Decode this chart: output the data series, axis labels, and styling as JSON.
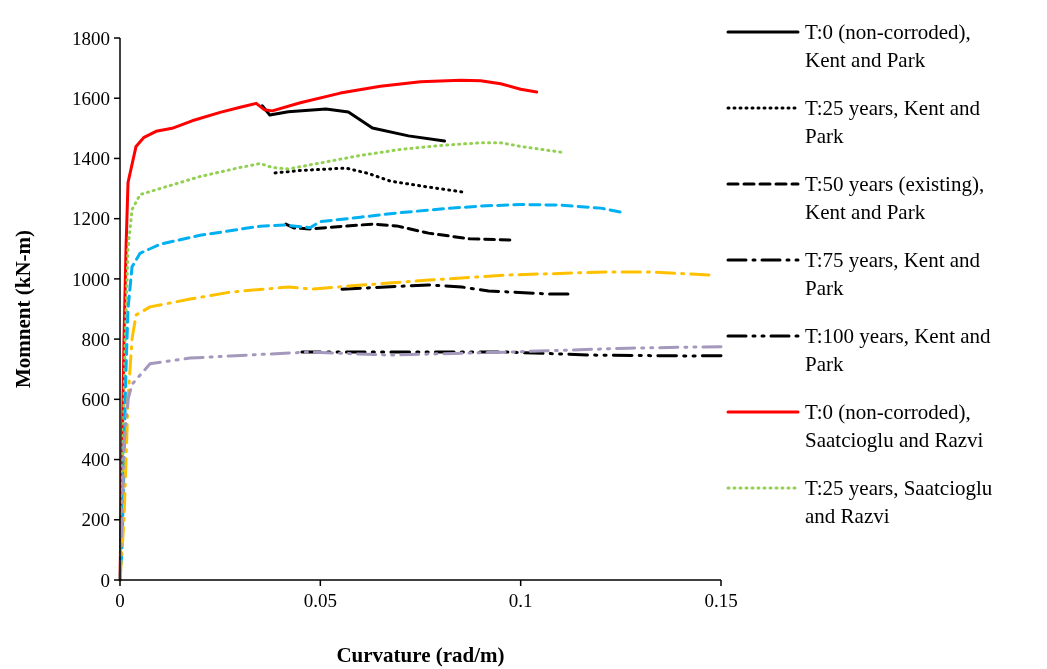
{
  "chart_data": {
    "type": "line",
    "xlabel": "Curvature (rad/m)",
    "ylabel": "Momnent (kN-m)",
    "xlim": [
      0,
      0.15
    ],
    "xticks": [
      0,
      0.05,
      0.1,
      0.15
    ],
    "ylim": [
      0,
      1800
    ],
    "yticks": [
      0,
      200,
      400,
      600,
      800,
      1000,
      1200,
      1400,
      1600,
      1800
    ],
    "grid": false,
    "legend": "right",
    "series": [
      {
        "name": "T:0 (non-corroded), Kent and Park",
        "color": "#000000",
        "line_style": "solid",
        "x": [
          0.0355,
          0.0374,
          0.042,
          0.0514,
          0.057,
          0.063,
          0.072,
          0.081
        ],
        "values": [
          1575,
          1544,
          1555,
          1564,
          1554,
          1501,
          1475,
          1458
        ]
      },
      {
        "name": "T:25 years, Kent and Park",
        "color": "#000000",
        "line_style": "dotted",
        "x": [
          0.0387,
          0.045,
          0.0564,
          0.062,
          0.0674,
          0.0754,
          0.0853
        ],
        "values": [
          1352,
          1360,
          1368,
          1350,
          1325,
          1308,
          1289
        ]
      },
      {
        "name": "T:50 years (existing), Kent and Park",
        "color": "#000000",
        "line_style": "dashed",
        "x": [
          0.0414,
          0.0434,
          0.0474,
          0.063,
          0.069,
          0.077,
          0.0873,
          0.0973
        ],
        "values": [
          1182,
          1169,
          1166,
          1182,
          1176,
          1152,
          1133,
          1129
        ]
      },
      {
        "name": "T:75 years, Kent and Park",
        "color": "#000000",
        "line_style": "dashdot",
        "x": [
          0.0554,
          0.077,
          0.0853,
          0.092,
          0.107,
          0.1118
        ],
        "values": [
          966,
          980,
          973,
          960,
          950,
          950
        ]
      },
      {
        "name": "T:100 years, Kent and Park",
        "color": "#000000",
        "line_style": "dashdotdot",
        "x": [
          0.0454,
          0.097,
          0.117,
          0.142,
          0.15
        ],
        "values": [
          757,
          757,
          747,
          744,
          745
        ]
      },
      {
        "name": "T:0 (non-corroded), Saatcioglu and Razvi",
        "color": "#ff0000",
        "line_style": "solid",
        "x": [
          0,
          0.0005,
          0.001,
          0.0015,
          0.002,
          0.004,
          0.006,
          0.009,
          0.013,
          0.018,
          0.025,
          0.03,
          0.034,
          0.036,
          0.038,
          0.045,
          0.055,
          0.065,
          0.075,
          0.085,
          0.09,
          0.095,
          0.1,
          0.104
        ],
        "values": [
          0,
          400,
          800,
          1100,
          1320,
          1440,
          1470,
          1490,
          1500,
          1525,
          1553,
          1570,
          1583,
          1562,
          1558,
          1585,
          1617,
          1640,
          1655,
          1660,
          1658,
          1648,
          1630,
          1621
        ]
      },
      {
        "name": "T:25 years, Saatcioglu and Razvi",
        "color": "#92d050",
        "line_style": "dotted",
        "x": [
          0,
          0.0007,
          0.0013,
          0.002,
          0.003,
          0.005,
          0.01,
          0.02,
          0.03,
          0.035,
          0.038,
          0.042,
          0.05,
          0.06,
          0.07,
          0.08,
          0.09,
          0.095,
          0.1,
          0.11
        ],
        "values": [
          0,
          400,
          800,
          1100,
          1230,
          1280,
          1300,
          1340,
          1370,
          1383,
          1370,
          1365,
          1385,
          1410,
          1430,
          1443,
          1452,
          1452,
          1440,
          1421
        ]
      },
      {
        "color": "#00b0f0",
        "line_style": "dashed",
        "x": [
          0,
          0.0005,
          0.001,
          0.0015,
          0.002,
          0.003,
          0.005,
          0.01,
          0.02,
          0.03,
          0.035,
          0.041,
          0.0474,
          0.05,
          0.06,
          0.07,
          0.08,
          0.09,
          0.1,
          0.11,
          0.12,
          0.1248
        ],
        "values": [
          0,
          100,
          400,
          700,
          900,
          1040,
          1085,
          1115,
          1145,
          1165,
          1175,
          1179,
          1170,
          1190,
          1205,
          1220,
          1232,
          1242,
          1247,
          1245,
          1235,
          1222
        ]
      },
      {
        "color": "#ffc000",
        "line_style": "dashdot",
        "x": [
          0,
          0.001,
          0.002,
          0.003,
          0.004,
          0.0075,
          0.0175,
          0.0275,
          0.042,
          0.048,
          0.057,
          0.077,
          0.097,
          0.122,
          0.132,
          0.147
        ],
        "values": [
          0,
          200,
          600,
          800,
          880,
          907,
          933,
          956,
          973,
          966,
          976,
          996,
          1013,
          1023,
          1023,
          1013
        ]
      },
      {
        "color": "#a598bd",
        "line_style": "dashdotdot",
        "x": [
          0,
          0.0005,
          0.001,
          0.002,
          0.003,
          0.0075,
          0.0175,
          0.0275,
          0.047,
          0.067,
          0.097,
          0.127,
          0.15
        ],
        "values": [
          0,
          200,
          450,
          600,
          650,
          718,
          737,
          744,
          757,
          747,
          757,
          770,
          775
        ]
      }
    ]
  }
}
